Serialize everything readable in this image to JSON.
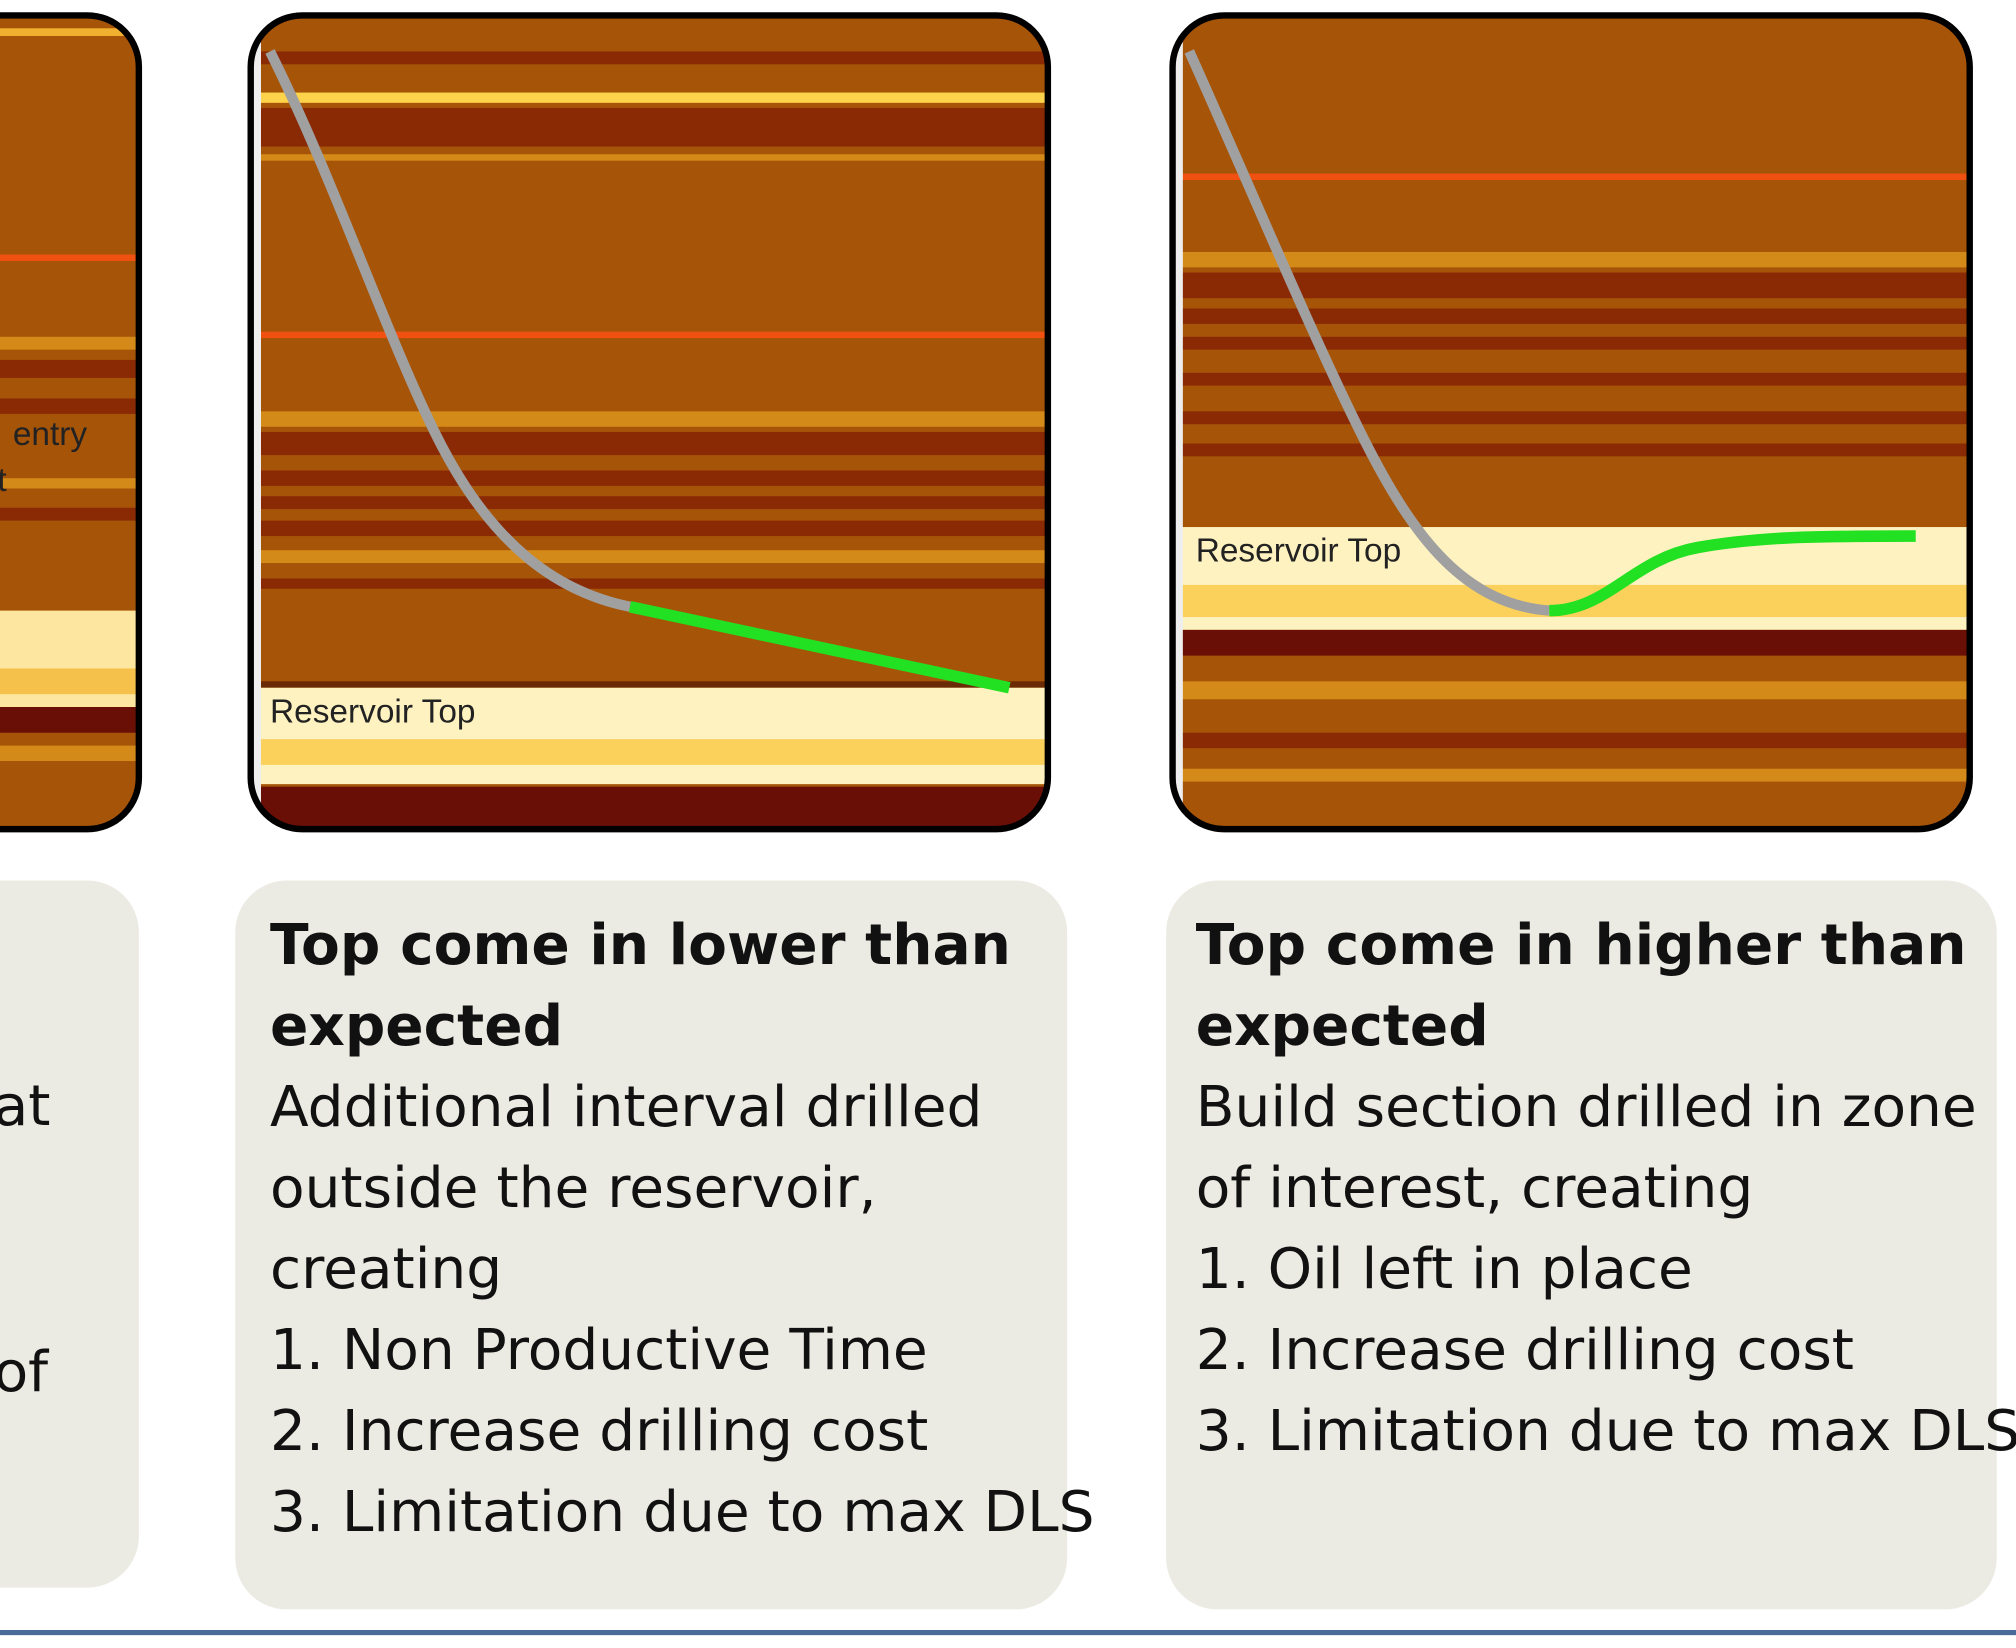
{
  "panels": [
    {
      "image_labels": [
        "entry",
        "t"
      ],
      "text_fragments": [
        "at",
        "of"
      ]
    },
    {
      "image_label": "Reservoir Top",
      "heading_lines": [
        "Top come in lower than",
        "expected"
      ],
      "body_lines": [
        "Additional interval drilled",
        "outside the reservoir,",
        "creating",
        "1. Non Productive Time",
        "2. Increase drilling cost",
        "3. Limitation due to max DLS"
      ]
    },
    {
      "image_label": "Reservoir Top",
      "heading_lines": [
        "Top come in higher than",
        "expected"
      ],
      "body_lines": [
        "Build section drilled in zone",
        "of interest, creating",
        "1. Oil left in place",
        "2. Increase drilling cost",
        "3. Limitation due to max DLS"
      ]
    }
  ]
}
